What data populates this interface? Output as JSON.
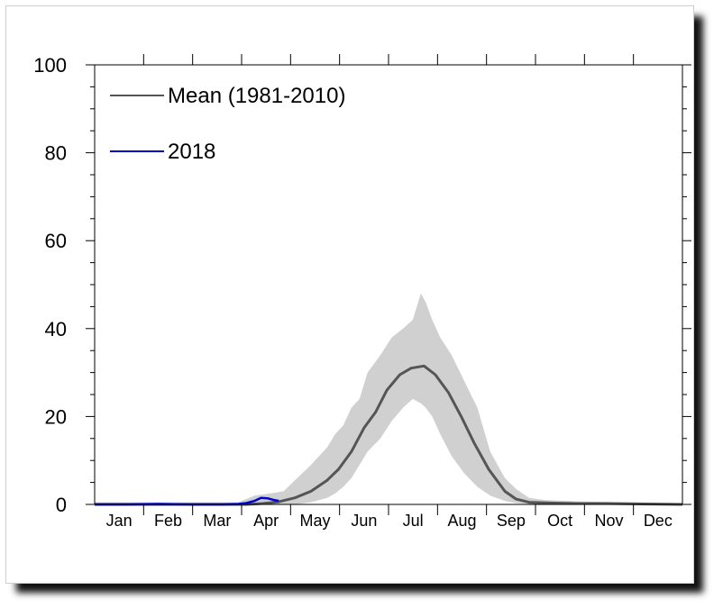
{
  "chart_data": {
    "type": "line",
    "title": "",
    "xlabel": "",
    "ylabel": "",
    "ylim": [
      0,
      100
    ],
    "yticks": [
      0,
      20,
      40,
      60,
      80,
      100
    ],
    "months": [
      "Jan",
      "Feb",
      "Mar",
      "Apr",
      "May",
      "Jun",
      "Jul",
      "Aug",
      "Sep",
      "Oct",
      "Nov",
      "Dec"
    ],
    "legend_position": "top-left",
    "grid": false,
    "x_unit": "day of year",
    "series": [
      {
        "name": "Mean (1981-2010)",
        "color": "#555555",
        "x": [
          1,
          30,
          60,
          95,
          105,
          115,
          125,
          135,
          145,
          152,
          160,
          168,
          175,
          182,
          190,
          197,
          205,
          212,
          220,
          228,
          236,
          245,
          255,
          262,
          270,
          285,
          300,
          320,
          340,
          365
        ],
        "y": [
          0,
          0,
          0,
          0,
          0.2,
          0.6,
          1.5,
          3.0,
          5.5,
          8.0,
          12.0,
          17.5,
          21.0,
          26.0,
          29.5,
          31.0,
          31.5,
          29.5,
          25.5,
          20.0,
          14.0,
          8.0,
          3.0,
          1.2,
          0.5,
          0.3,
          0.2,
          0.2,
          0.1,
          0
        ]
      },
      {
        "name": "2018",
        "color": "#0000cc",
        "x": [
          1,
          20,
          40,
          60,
          80,
          90,
          95,
          100,
          104,
          108,
          112,
          115
        ],
        "y": [
          0,
          0,
          0.1,
          0,
          0,
          0.1,
          0.3,
          0.8,
          1.5,
          1.4,
          1.0,
          0.8
        ]
      }
    ],
    "band": {
      "name": "range",
      "color": "#d0d0d0",
      "x": [
        1,
        60,
        90,
        100,
        110,
        118,
        125,
        135,
        145,
        150,
        155,
        160,
        165,
        170,
        178,
        185,
        192,
        198,
        203,
        206,
        210,
        215,
        222,
        230,
        238,
        246,
        255,
        262,
        270,
        280,
        300,
        330,
        365
      ],
      "upper": [
        0.5,
        0.5,
        0.5,
        2.0,
        2.5,
        3.0,
        5.5,
        9.0,
        13.0,
        16.0,
        18.0,
        22.0,
        24.0,
        30.0,
        34.0,
        38.0,
        40.0,
        42.0,
        48.0,
        46.0,
        42.0,
        38.0,
        34.0,
        28.0,
        22.0,
        12.0,
        6.0,
        3.5,
        1.5,
        1.0,
        0.7,
        0.5,
        0.3
      ],
      "lower": [
        0,
        0,
        0,
        0,
        0,
        0,
        0,
        0.5,
        1.5,
        2.5,
        4.0,
        6.0,
        9.0,
        12.0,
        15.0,
        19.0,
        22.0,
        24.0,
        23.0,
        22.0,
        20.0,
        16.0,
        11.0,
        7.0,
        4.0,
        2.0,
        0.8,
        0.3,
        0.1,
        0,
        0,
        0,
        0
      ]
    }
  }
}
